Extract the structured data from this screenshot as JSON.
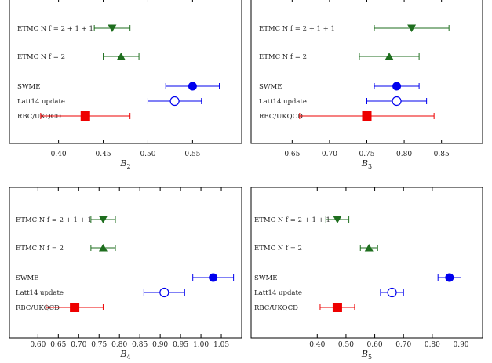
{
  "colors": {
    "green": "#1e6e1e",
    "blue": "#0000ee",
    "red": "#ee0000"
  },
  "chart_data": [
    {
      "type": "scatter",
      "xlabel": "B",
      "xsub": "2",
      "xlim": [
        0.345,
        0.605
      ],
      "ticks": [
        0.4,
        0.45,
        0.5,
        0.55
      ],
      "tick_labels": [
        "0.40",
        "0.45",
        "0.50",
        "0.55"
      ],
      "points": [
        {
          "label": "ETMC N f = 2 + 1 + 1",
          "x": 0.46,
          "xerr": [
            0.44,
            0.48
          ],
          "marker": "triangle-down",
          "color": "green"
        },
        {
          "label": "ETMC N f = 2",
          "x": 0.47,
          "xerr": [
            0.45,
            0.49
          ],
          "marker": "triangle-up",
          "color": "green"
        },
        {
          "label": "SWME",
          "x": 0.55,
          "xerr": [
            0.52,
            0.58
          ],
          "marker": "circle-filled",
          "color": "blue"
        },
        {
          "label": "Latt14 update",
          "x": 0.53,
          "xerr": [
            0.5,
            0.56
          ],
          "marker": "circle-open",
          "color": "blue"
        },
        {
          "label": "RBC/UKQCD",
          "x": 0.43,
          "xerr": [
            0.38,
            0.48
          ],
          "marker": "square",
          "color": "red"
        }
      ]
    },
    {
      "type": "scatter",
      "xlabel": "B",
      "xsub": "3",
      "xlim": [
        0.595,
        0.905
      ],
      "ticks": [
        0.65,
        0.7,
        0.75,
        0.8,
        0.85
      ],
      "tick_labels": [
        "0.65",
        "0.70",
        "0.75",
        "0.80",
        "0.85"
      ],
      "points": [
        {
          "label": "ETMC N f = 2 + 1 + 1",
          "x": 0.81,
          "xerr": [
            0.76,
            0.86
          ],
          "marker": "triangle-down",
          "color": "green"
        },
        {
          "label": "ETMC N f = 2",
          "x": 0.78,
          "xerr": [
            0.74,
            0.82
          ],
          "marker": "triangle-up",
          "color": "green"
        },
        {
          "label": "SWME",
          "x": 0.79,
          "xerr": [
            0.76,
            0.82
          ],
          "marker": "circle-filled",
          "color": "blue"
        },
        {
          "label": "Latt14 update",
          "x": 0.79,
          "xerr": [
            0.75,
            0.83
          ],
          "marker": "circle-open",
          "color": "blue"
        },
        {
          "label": "RBC/UKQCD",
          "x": 0.75,
          "xerr": [
            0.66,
            0.84
          ],
          "marker": "square",
          "color": "red"
        }
      ]
    },
    {
      "type": "scatter",
      "xlabel": "B",
      "xsub": "4",
      "xlim": [
        0.53,
        1.1
      ],
      "ticks": [
        0.6,
        0.65,
        0.7,
        0.75,
        0.8,
        0.85,
        0.9,
        0.95,
        1.0,
        1.05
      ],
      "tick_labels": [
        "0.60",
        "0.65",
        "0.70",
        "0.75",
        "0.80",
        "0.85",
        "0.90",
        "0.95",
        "1.00",
        "1.05"
      ],
      "points": [
        {
          "label": "ETMC N f = 2 + 1 + 1",
          "x": 0.76,
          "xerr": [
            0.73,
            0.79
          ],
          "marker": "triangle-down",
          "color": "green"
        },
        {
          "label": "ETMC N f = 2",
          "x": 0.76,
          "xerr": [
            0.73,
            0.79
          ],
          "marker": "triangle-up",
          "color": "green"
        },
        {
          "label": "SWME",
          "x": 1.03,
          "xerr": [
            0.98,
            1.08
          ],
          "marker": "circle-filled",
          "color": "blue"
        },
        {
          "label": "Latt14 update",
          "x": 0.91,
          "xerr": [
            0.86,
            0.96
          ],
          "marker": "circle-open",
          "color": "blue"
        },
        {
          "label": "RBC/UKQCD",
          "x": 0.69,
          "xerr": [
            0.62,
            0.76
          ],
          "marker": "square",
          "color": "red"
        }
      ]
    },
    {
      "type": "scatter",
      "xlabel": "B",
      "xsub": "5",
      "xlim": [
        0.17,
        0.975
      ],
      "ticks": [
        0.4,
        0.5,
        0.6,
        0.7,
        0.8,
        0.9
      ],
      "tick_labels": [
        "0.40",
        "0.50",
        "0.60",
        "0.70",
        "0.80",
        "0.90"
      ],
      "points": [
        {
          "label": "ETMC N f = 2 + 1 + 1",
          "x": 0.47,
          "xerr": [
            0.43,
            0.51
          ],
          "marker": "triangle-down",
          "color": "green"
        },
        {
          "label": "ETMC N f = 2",
          "x": 0.58,
          "xerr": [
            0.55,
            0.61
          ],
          "marker": "triangle-up",
          "color": "green"
        },
        {
          "label": "SWME",
          "x": 0.86,
          "xerr": [
            0.82,
            0.9
          ],
          "marker": "circle-filled",
          "color": "blue"
        },
        {
          "label": "Latt14 update",
          "x": 0.66,
          "xerr": [
            0.62,
            0.7
          ],
          "marker": "circle-open",
          "color": "blue"
        },
        {
          "label": "RBC/UKQCD",
          "x": 0.47,
          "xerr": [
            0.41,
            0.53
          ],
          "marker": "square",
          "color": "red"
        }
      ]
    }
  ]
}
